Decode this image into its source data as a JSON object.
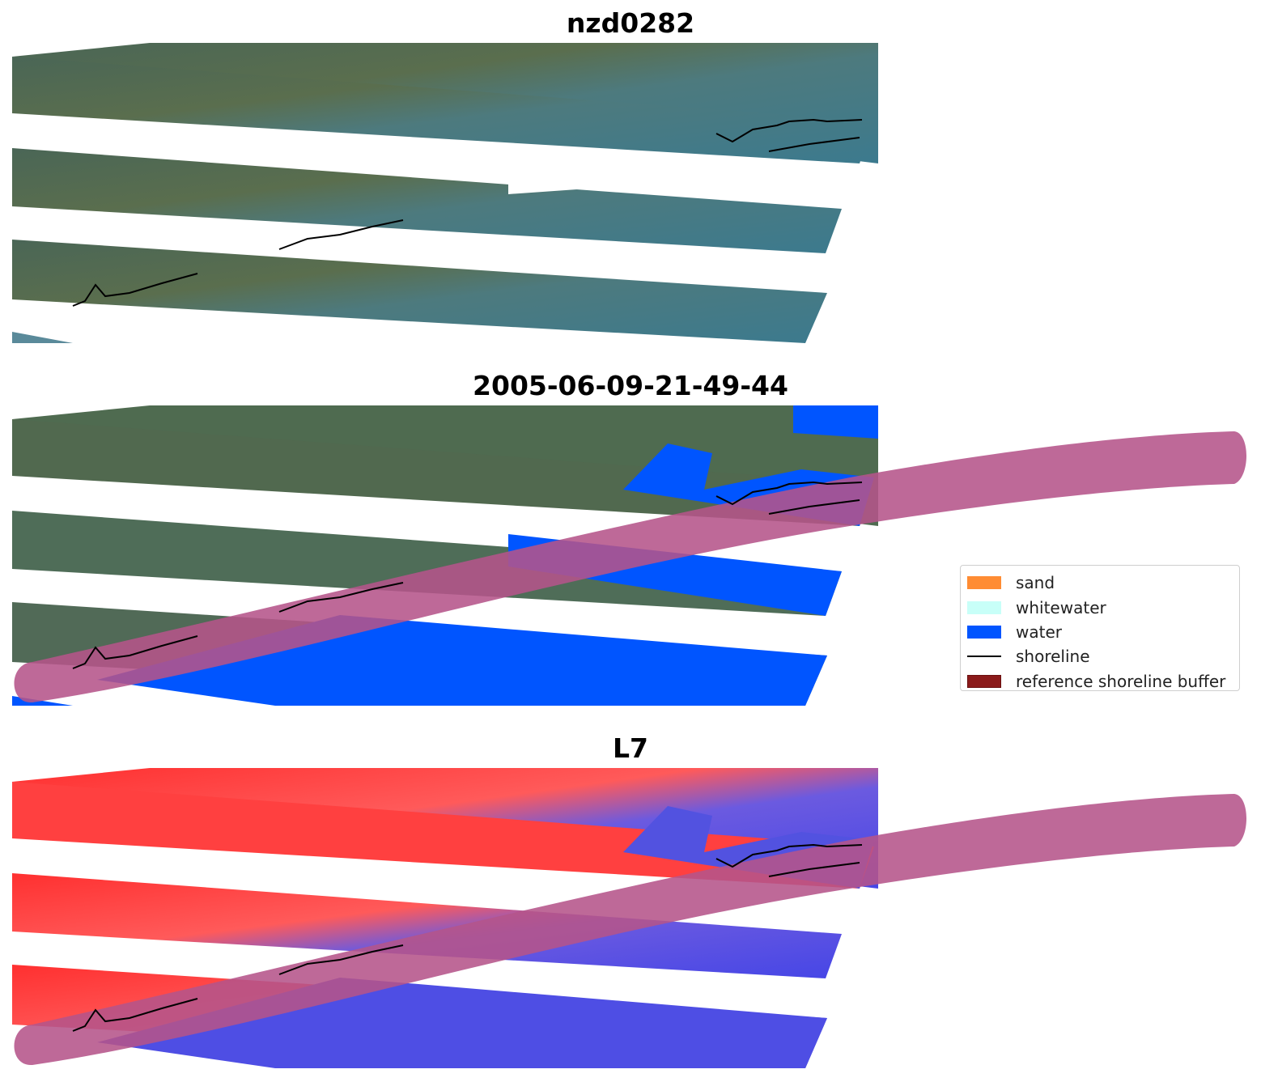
{
  "panels": [
    {
      "title": "nzd0282"
    },
    {
      "title": "2005-06-09-21-49-44"
    },
    {
      "title": "L7"
    }
  ],
  "legend": {
    "items": [
      {
        "label": "sand",
        "color": "#ff8c33",
        "kind": "patch"
      },
      {
        "label": "whitewater",
        "color": "#c8fff8",
        "kind": "patch"
      },
      {
        "label": "water",
        "color": "#0055ff",
        "kind": "patch"
      },
      {
        "label": "shoreline",
        "color": "#000000",
        "kind": "line"
      },
      {
        "label": "reference shoreline buffer",
        "color": "#8b1a1a",
        "kind": "patch"
      }
    ]
  },
  "colors": {
    "buffer_overlay": "#b5548a",
    "land_rgb": "#4e6a52",
    "water_rgb": "#3e7b8c",
    "index_land": "#ff2a2a",
    "index_water": "#4a4ae8"
  }
}
